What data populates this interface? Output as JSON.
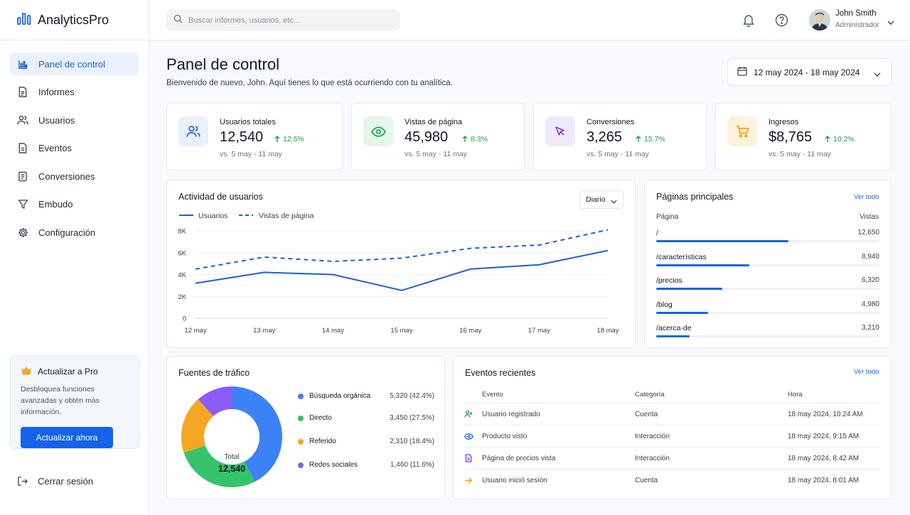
{
  "app": {
    "name": "AnalyticsPro",
    "brand_color": "#1463e8"
  },
  "sidebar": {
    "items": [
      {
        "label": "Panel de control",
        "icon": "bar-chart-icon",
        "active": true
      },
      {
        "label": "Informes",
        "icon": "document-icon"
      },
      {
        "label": "Usuarios",
        "icon": "users-icon"
      },
      {
        "label": "Eventos",
        "icon": "file-list-icon"
      },
      {
        "label": "Conversiones",
        "icon": "clipboard-icon"
      },
      {
        "label": "Embudo",
        "icon": "funnel-icon"
      },
      {
        "label": "Configuración",
        "icon": "gear-icon"
      }
    ],
    "upgrade": {
      "title": "Actualizar a Pro",
      "description": "Desbloquea funciones avanzadas y obtén más información.",
      "button": "Actualizar ahora"
    },
    "logout": "Cerrar sesión"
  },
  "topbar": {
    "search_placeholder": "Buscar informes, usuarios, etc...",
    "user_name": "John Smith",
    "user_role": "Administrador"
  },
  "header": {
    "title": "Panel de control",
    "subtitle": "Bienvenido de nuevo, John. Aquí tienes lo que está ocurriendo con tu analítica.",
    "date_range": "12 may 2024 - 18 may 2024"
  },
  "kpis": [
    {
      "label": "Usuarios totales",
      "value": "12,540",
      "delta": "12.5%",
      "compare": "vs. 5 may - 11 may",
      "icon": "users-icon",
      "color": "#2563eb",
      "bg": "#e8f0fd"
    },
    {
      "label": "Vistas de página",
      "value": "45,980",
      "delta": "8.3%",
      "compare": "vs. 5 may - 11 may",
      "icon": "eye-icon",
      "color": "#16a34a",
      "bg": "#e5f6ea"
    },
    {
      "label": "Conversiones",
      "value": "3,265",
      "delta": "15.7%",
      "compare": "vs. 5 may - 11 may",
      "icon": "cursor-icon",
      "color": "#7c3aed",
      "bg": "#efe9fc"
    },
    {
      "label": "Ingresos",
      "value": "$8,765",
      "delta": "10.2%",
      "compare": "vs. 5 may - 11 may",
      "icon": "cart-icon",
      "color": "#f59e0b",
      "bg": "#fdf2dc"
    }
  ],
  "activity": {
    "title": "Actividad de usuarios",
    "period": "Diario",
    "legend": [
      "Usuarios",
      "Vistas de página"
    ]
  },
  "chart_data": {
    "type": "line",
    "x": [
      "12 may",
      "13 may",
      "14 may",
      "15 may",
      "16 may",
      "17 may",
      "18 may"
    ],
    "series": [
      {
        "name": "Usuarios",
        "values": [
          3200,
          4200,
          4000,
          2550,
          4500,
          4900,
          6200
        ],
        "style": "solid"
      },
      {
        "name": "Vistas de página",
        "values": [
          4500,
          5600,
          5200,
          5500,
          6400,
          6700,
          8100
        ],
        "style": "dashed"
      }
    ],
    "yticks": [
      "0",
      "2K",
      "4K",
      "6K",
      "8K"
    ],
    "ylim": [
      0,
      8000
    ],
    "grid": "horizontal",
    "legend_position": "top-left",
    "color": "#1d5fd6"
  },
  "top_pages": {
    "title": "Páginas principales",
    "view_all": "Ver todo",
    "col_page": "Página",
    "col_views": "Vistas",
    "rows": [
      {
        "page": "/",
        "views": "12,650",
        "views_num": 12650
      },
      {
        "page": "/características",
        "views": "8,940",
        "views_num": 8940
      },
      {
        "page": "/precios",
        "views": "6,320",
        "views_num": 6320
      },
      {
        "page": "/blog",
        "views": "4,980",
        "views_num": 4980
      },
      {
        "page": "/acerca-de",
        "views": "3,210",
        "views_num": 3210
      }
    ]
  },
  "traffic": {
    "title": "Fuentes de tráfico",
    "total_label": "Total",
    "total_value": "12,540",
    "sources": [
      {
        "name": "Búsqueda orgánica",
        "value": "5,320 (42.4%)",
        "num": 5320,
        "color": "#3b82f6"
      },
      {
        "name": "Directo",
        "value": "3,450 (27.5%)",
        "num": 3450,
        "color": "#34c36b"
      },
      {
        "name": "Referido",
        "value": "2,310 (18.4%)",
        "num": 2310,
        "color": "#f5a623"
      },
      {
        "name": "Redes sociales",
        "value": "1,460 (11.6%)",
        "num": 1460,
        "color": "#8b5cf6"
      }
    ]
  },
  "events": {
    "title": "Eventos recientes",
    "view_all": "Ver todo",
    "columns": [
      "Evento",
      "Categoría",
      "Hora"
    ],
    "rows": [
      {
        "event": "Usuario registrado",
        "category": "Cuenta",
        "time": "18 may 2024, 10:24 AM",
        "icon": "user-add-icon",
        "color": "#16a34a"
      },
      {
        "event": "Producto visto",
        "category": "Interacción",
        "time": "18 may 2024, 9:15 AM",
        "icon": "eye-icon",
        "color": "#2563eb"
      },
      {
        "event": "Página de precios vista",
        "category": "Interacción",
        "time": "18 may 2024, 8:42 AM",
        "icon": "document-icon",
        "color": "#7c3aed"
      },
      {
        "event": "Usuario inició sesión",
        "category": "Cuenta",
        "time": "18 may 2024, 8:01 AM",
        "icon": "login-arrow-icon",
        "color": "#f59e0b"
      }
    ]
  }
}
